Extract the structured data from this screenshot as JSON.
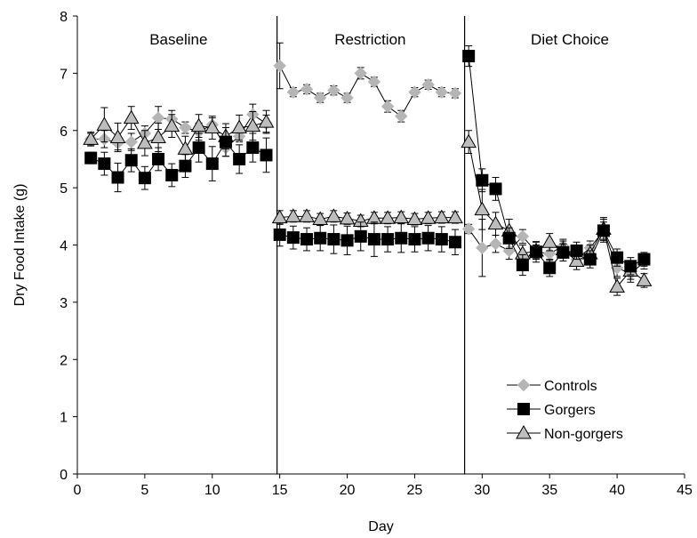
{
  "chart_data": {
    "type": "line",
    "title": "",
    "xlabel": "Day",
    "ylabel": "Dry Food Intake (g)",
    "xlim": [
      0,
      45
    ],
    "ylim": [
      0,
      8
    ],
    "x_ticks": [
      0,
      5,
      10,
      15,
      20,
      25,
      30,
      35,
      40,
      45
    ],
    "y_ticks": [
      0,
      1,
      2,
      3,
      4,
      5,
      6,
      7,
      8
    ],
    "grid": false,
    "legend_position": "bottom-right",
    "phase_dividers": [
      14.8,
      28.7
    ],
    "annotations": [
      {
        "text": "Baseline",
        "x": 7.5,
        "y": 7.6
      },
      {
        "text": "Restriction",
        "x": 21.7,
        "y": 7.6
      },
      {
        "text": "Diet Choice",
        "x": 36.5,
        "y": 7.6
      }
    ],
    "series": [
      {
        "name": "Controls",
        "marker": "diamond",
        "color": "#b5b5b5",
        "x": [
          1,
          2,
          3,
          4,
          5,
          6,
          7,
          8,
          9,
          10,
          11,
          12,
          13,
          14,
          null,
          15,
          16,
          17,
          18,
          19,
          20,
          21,
          22,
          23,
          24,
          25,
          26,
          27,
          28,
          null,
          29,
          30,
          31,
          32,
          33,
          34,
          35,
          36,
          37,
          38,
          39,
          40,
          41,
          42
        ],
        "y": [
          5.85,
          5.85,
          5.78,
          5.8,
          5.95,
          6.22,
          6.2,
          6.05,
          5.98,
          6.1,
          5.7,
          5.9,
          6.28,
          6.12,
          null,
          7.13,
          6.67,
          6.72,
          6.57,
          6.7,
          6.57,
          7.0,
          6.85,
          6.42,
          6.25,
          6.67,
          6.8,
          6.67,
          6.65,
          null,
          4.28,
          3.95,
          4.02,
          3.9,
          4.15,
          3.88,
          3.85,
          3.98,
          3.75,
          3.95,
          4.25,
          3.6,
          3.5,
          3.7
        ],
        "err": [
          0.1,
          0.15,
          0.12,
          0.15,
          0.13,
          0.2,
          0.15,
          0.1,
          0.15,
          0.12,
          0.15,
          0.1,
          0.18,
          0.15,
          null,
          0.4,
          0.08,
          0.08,
          0.08,
          0.08,
          0.08,
          0.1,
          0.08,
          0.1,
          0.1,
          0.08,
          0.08,
          0.08,
          0.08,
          null,
          0.08,
          0.5,
          0.15,
          0.15,
          0.12,
          0.12,
          0.12,
          0.12,
          0.12,
          0.12,
          0.15,
          0.15,
          0.15,
          0.12
        ]
      },
      {
        "name": "Gorgers",
        "marker": "square",
        "color": "#000000",
        "x": [
          1,
          2,
          3,
          4,
          5,
          6,
          7,
          8,
          9,
          10,
          11,
          12,
          13,
          14,
          null,
          15,
          16,
          17,
          18,
          19,
          20,
          21,
          22,
          23,
          24,
          25,
          26,
          27,
          28,
          null,
          29,
          30,
          31,
          32,
          33,
          34,
          35,
          36,
          37,
          38,
          39,
          40,
          41,
          42
        ],
        "y": [
          5.52,
          5.42,
          5.18,
          5.48,
          5.17,
          5.5,
          5.22,
          5.38,
          5.7,
          5.42,
          5.8,
          5.5,
          5.7,
          5.57,
          null,
          4.18,
          4.13,
          4.1,
          4.12,
          4.1,
          4.08,
          4.15,
          4.1,
          4.1,
          4.12,
          4.1,
          4.12,
          4.1,
          4.05,
          null,
          7.3,
          5.13,
          4.98,
          4.12,
          3.65,
          3.88,
          3.6,
          3.87,
          3.9,
          3.75,
          4.25,
          3.78,
          3.63,
          3.75
        ],
        "err": [
          0.1,
          0.2,
          0.25,
          0.2,
          0.2,
          0.2,
          0.2,
          0.2,
          0.25,
          0.3,
          0.25,
          0.25,
          0.25,
          0.3,
          null,
          0.2,
          0.2,
          0.2,
          0.22,
          0.25,
          0.25,
          0.25,
          0.3,
          0.22,
          0.25,
          0.22,
          0.22,
          0.22,
          0.22,
          null,
          0.18,
          0.2,
          0.2,
          0.18,
          0.18,
          0.18,
          0.15,
          0.15,
          0.15,
          0.15,
          0.2,
          0.15,
          0.15,
          0.12
        ]
      },
      {
        "name": "Non-gorgers",
        "marker": "triangle",
        "color": "#bdbdbd",
        "x": [
          1,
          2,
          3,
          4,
          5,
          6,
          7,
          8,
          9,
          10,
          11,
          12,
          13,
          14,
          null,
          15,
          16,
          17,
          18,
          19,
          20,
          21,
          22,
          23,
          24,
          25,
          26,
          27,
          28,
          null,
          29,
          30,
          31,
          32,
          33,
          34,
          35,
          36,
          37,
          38,
          39,
          40,
          41,
          42
        ],
        "y": [
          5.85,
          6.1,
          5.88,
          6.22,
          5.78,
          5.88,
          6.08,
          5.68,
          6.08,
          6.05,
          5.9,
          6.05,
          6.08,
          6.15,
          null,
          4.48,
          4.5,
          4.5,
          4.45,
          4.5,
          4.46,
          4.42,
          4.47,
          4.47,
          4.48,
          4.45,
          4.47,
          4.48,
          4.48,
          null,
          5.8,
          4.62,
          4.37,
          4.25,
          3.85,
          3.9,
          4.05,
          3.92,
          3.72,
          3.85,
          4.28,
          3.27,
          3.55,
          3.38
        ],
        "err": [
          0.12,
          0.3,
          0.25,
          0.2,
          0.22,
          0.25,
          0.2,
          0.22,
          0.2,
          0.2,
          0.22,
          0.22,
          0.25,
          0.2,
          null,
          0.12,
          0.1,
          0.1,
          0.1,
          0.1,
          0.1,
          0.1,
          0.1,
          0.1,
          0.1,
          0.1,
          0.1,
          0.1,
          0.1,
          null,
          0.2,
          0.35,
          0.2,
          0.2,
          0.15,
          0.15,
          0.15,
          0.15,
          0.15,
          0.15,
          0.2,
          0.15,
          0.15,
          0.12
        ]
      }
    ]
  }
}
